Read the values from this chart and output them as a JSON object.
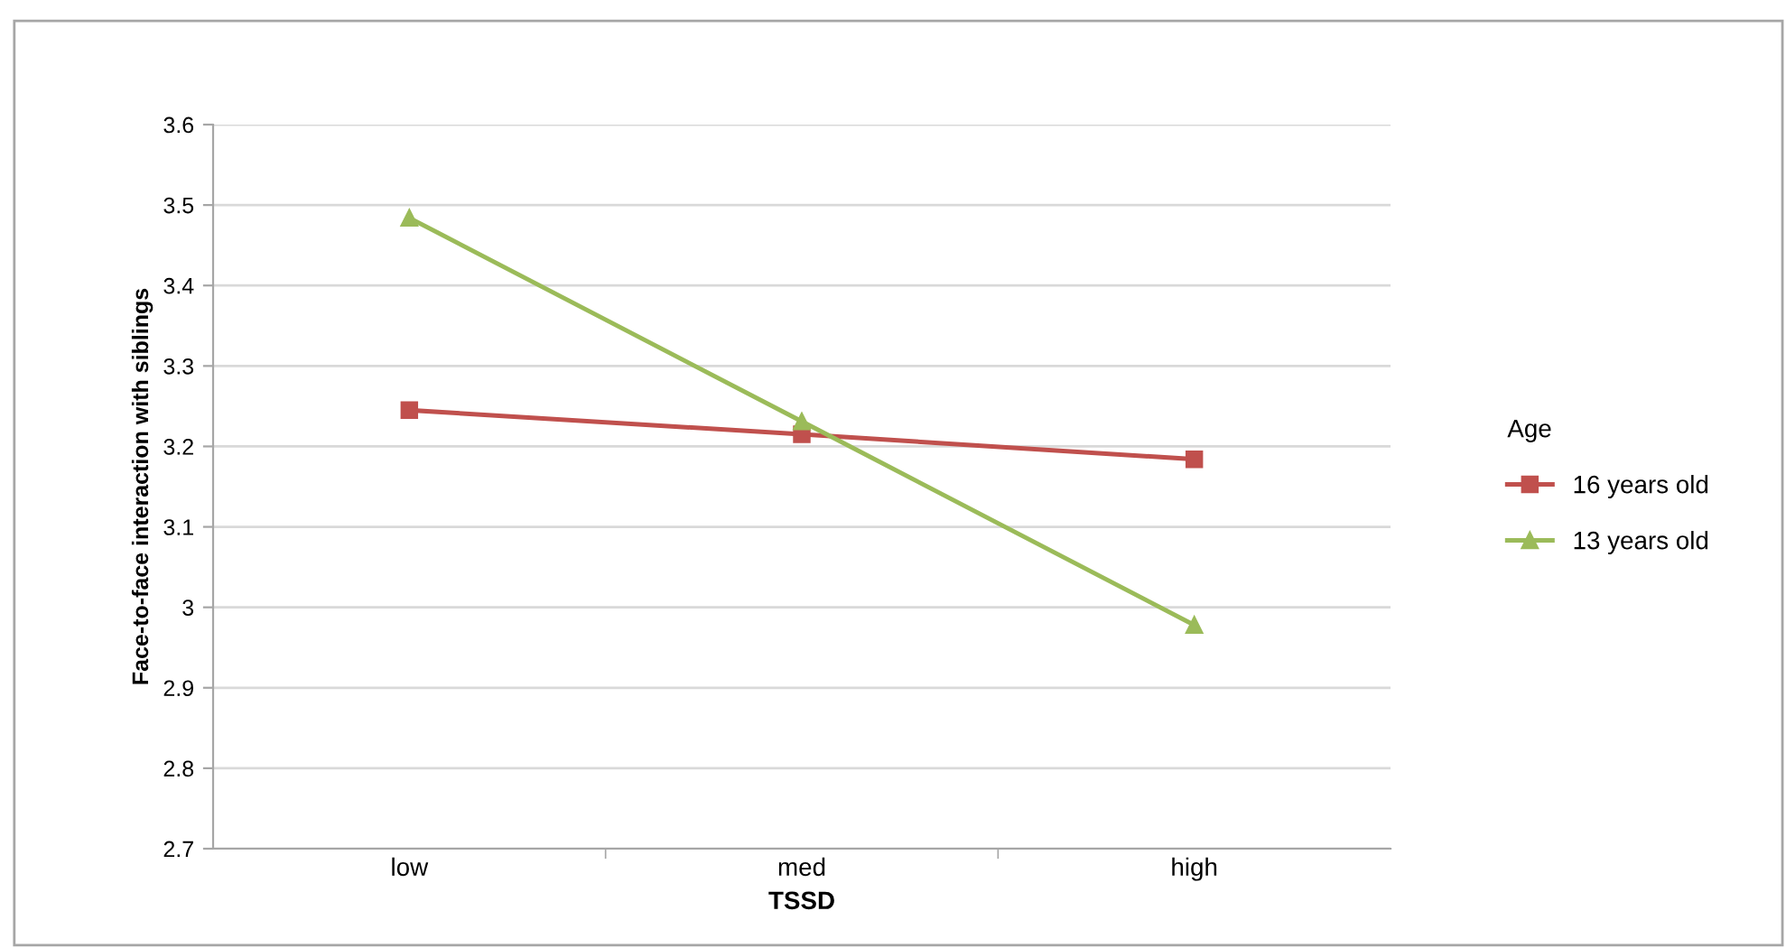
{
  "chart_data": {
    "type": "line",
    "xlabel": "TSSD",
    "ylabel": "Face-to-face interaction with siblings",
    "legend_title": "Age",
    "categories": [
      "low",
      "med",
      "high"
    ],
    "series": [
      {
        "name": "16 years old",
        "color": "#c0504d",
        "marker": "square",
        "values": [
          3.245,
          3.215,
          3.184
        ]
      },
      {
        "name": "13 years old",
        "color": "#9bbb59",
        "marker": "triangle",
        "values": [
          3.484,
          3.231,
          2.978
        ]
      }
    ],
    "ylim": [
      2.7,
      3.6
    ],
    "yticks": [
      2.7,
      2.8,
      2.9,
      3,
      3.1,
      3.2,
      3.3,
      3.4,
      3.5,
      3.6
    ],
    "grid": "y",
    "legend": "right",
    "line_style": "solid"
  }
}
